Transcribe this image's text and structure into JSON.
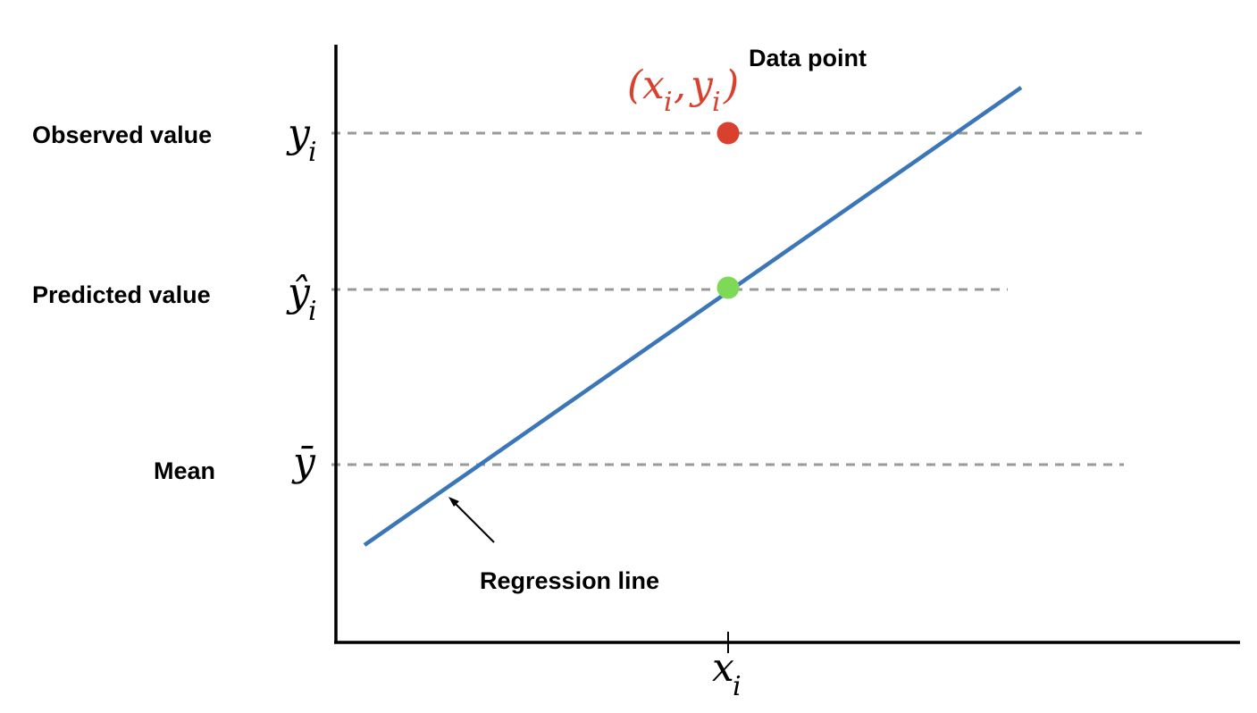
{
  "labels": {
    "observed": "Observed value",
    "predicted": "Predicted value",
    "mean": "Mean",
    "data_point": "Data point",
    "regression_line": "Regression line"
  },
  "symbols": {
    "y": "y",
    "y_hat": "ŷ",
    "y_bar": "ȳ",
    "x": "x",
    "sub_i": "i",
    "open_paren": "(",
    "comma": ",",
    "close_paren": ")"
  },
  "colors": {
    "regression_line": "#3a76b8",
    "data_point": "#d9412e",
    "predicted_point": "#7ed957",
    "reference_lines": "#9a9a9a",
    "axes": "#000000"
  }
}
